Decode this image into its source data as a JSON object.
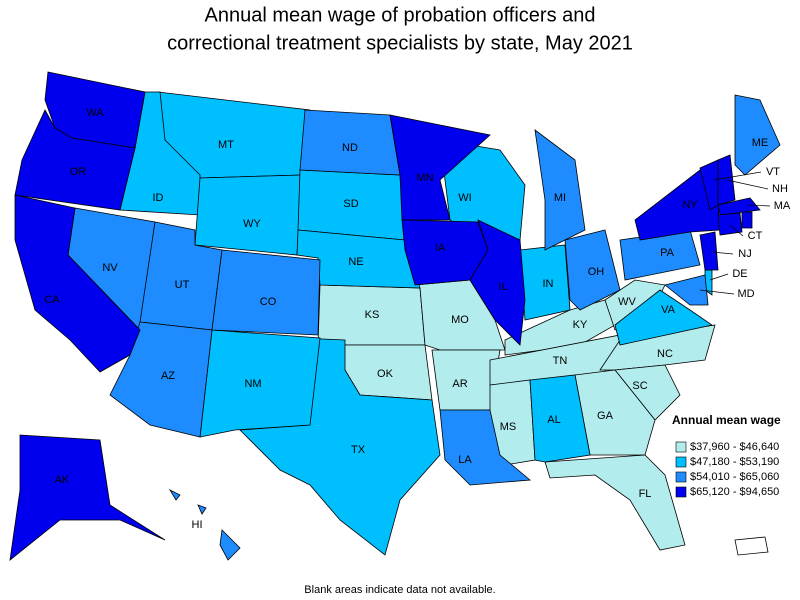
{
  "header": {
    "title_lines": [
      "Annual mean wage of probation officers and",
      "correctional treatment specialists by state, May 2021"
    ]
  },
  "legend": {
    "title": "Annual mean wage",
    "items": [
      {
        "label": "$37,960 - $46,640",
        "color": "#b3eced",
        "states": [
          "KS",
          "MO",
          "OK",
          "AR",
          "KY",
          "TN",
          "MS",
          "WV",
          "NC",
          "SC",
          "GA",
          "FL"
        ]
      },
      {
        "label": "$47,180 - $53,190",
        "color": "#00bfff",
        "states": [
          "MT",
          "ID",
          "WY",
          "SD",
          "NE",
          "TX",
          "NM",
          "WI",
          "IN",
          "AL",
          "VA",
          "DE"
        ]
      },
      {
        "label": "$54,010 - $65,060",
        "color": "#1e8cff",
        "states": [
          "ND",
          "NV",
          "UT",
          "CO",
          "AZ",
          "MI",
          "OH",
          "PA",
          "LA",
          "ME",
          "HI",
          "MD"
        ]
      },
      {
        "label": "$65,120 - $94,650",
        "color": "#0000ee",
        "states": [
          "WA",
          "OR",
          "CA",
          "MN",
          "IA",
          "IL",
          "NY",
          "VT",
          "NH",
          "MA",
          "CT",
          "NJ",
          "AK",
          "RI"
        ]
      }
    ]
  },
  "note": "Blank areas indicate data not available."
}
